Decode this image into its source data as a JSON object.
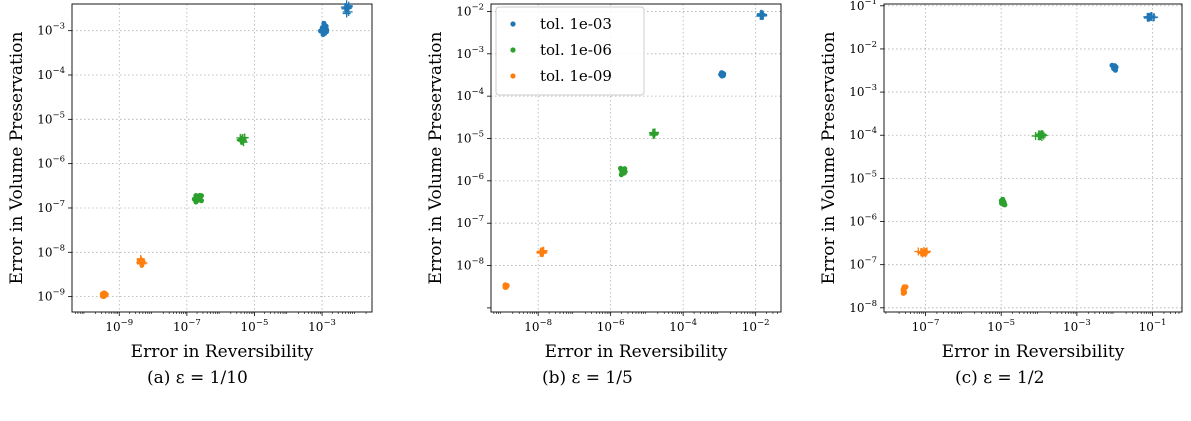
{
  "colors": {
    "blue": "#1f77b4",
    "green": "#2ca02c",
    "orange": "#ff7f0e",
    "grid": "#b0b0b0"
  },
  "legend_labels": [
    "tol. 1e-03",
    "tol. 1e-06",
    "tol. 1e-09"
  ],
  "chart_data": [
    {
      "type": "scatter",
      "caption": "(a) ε = 1/10",
      "xlabel": "Error in Reversibility",
      "ylabel": "Error in Volume Preservation",
      "xscale": "log",
      "yscale": "log",
      "xlim": [
        4e-11,
        0.03
      ],
      "ylim": [
        4.5e-10,
        0.004
      ],
      "xticks": [
        {
          "v": 1e-09,
          "e": "−9"
        },
        {
          "v": 1e-07,
          "e": "−7"
        },
        {
          "v": 1e-05,
          "e": "−5"
        },
        {
          "v": 0.001,
          "e": "−3"
        }
      ],
      "yticks": [
        {
          "v": 1e-09,
          "e": "−9"
        },
        {
          "v": 1e-08,
          "e": "−8"
        },
        {
          "v": 1e-07,
          "e": "−7"
        },
        {
          "v": 1e-06,
          "e": "−6"
        },
        {
          "v": 1e-05,
          "e": "−5"
        },
        {
          "v": 0.0001,
          "e": "−4"
        },
        {
          "v": 0.001,
          "e": "−3"
        }
      ],
      "grid": true,
      "legend": null,
      "series": [
        {
          "tol": "1e-03",
          "color": "blue",
          "marker": "dot",
          "x": 0.0012,
          "y": 0.0011,
          "spread_x": 0.12,
          "spread_y": 0.18
        },
        {
          "tol": "1e-03",
          "color": "blue",
          "marker": "plus",
          "x": 0.0055,
          "y": 0.0032,
          "spread_x": 0.08,
          "spread_y": 0.09
        },
        {
          "tol": "1e-06",
          "color": "green",
          "marker": "dot",
          "x": 2.2e-07,
          "y": 1.6e-07,
          "spread_x": 0.12,
          "spread_y": 0.1
        },
        {
          "tol": "1e-06",
          "color": "green",
          "marker": "plus",
          "x": 4.5e-06,
          "y": 3.5e-06,
          "spread_x": 0.07,
          "spread_y": 0.06
        },
        {
          "tol": "1e-09",
          "color": "orange",
          "marker": "dot",
          "x": 3.5e-10,
          "y": 1.1e-09,
          "spread_x": 0.08,
          "spread_y": 0.05
        },
        {
          "tol": "1e-09",
          "color": "orange",
          "marker": "plus",
          "x": 4.5e-09,
          "y": 6e-09,
          "spread_x": 0.06,
          "spread_y": 0.06
        }
      ]
    },
    {
      "type": "scatter",
      "caption": "(b) ε = 1/5",
      "xlabel": "Error in Reversibility",
      "ylabel": "Error in Volume Preservation",
      "xscale": "log",
      "yscale": "log",
      "xlim": [
        5e-10,
        0.05
      ],
      "ylim": [
        8e-10,
        0.015
      ],
      "xticks": [
        {
          "v": 1e-08,
          "e": "−8"
        },
        {
          "v": 1e-06,
          "e": "−6"
        },
        {
          "v": 0.0001,
          "e": "−4"
        },
        {
          "v": 0.01,
          "e": "−2"
        }
      ],
      "yticks": [
        {
          "v": 1e-08,
          "e": "−8"
        },
        {
          "v": 1e-07,
          "e": "−7"
        },
        {
          "v": 1e-06,
          "e": "−6"
        },
        {
          "v": 1e-05,
          "e": "−5"
        },
        {
          "v": 0.0001,
          "e": "−4"
        },
        {
          "v": 0.001,
          "e": "−3"
        },
        {
          "v": 0.01,
          "e": "−2"
        }
      ],
      "grid": true,
      "legend": "top-left",
      "series": [
        {
          "tol": "1e-03",
          "color": "blue",
          "marker": "dot",
          "x": 0.0012,
          "y": 0.00032,
          "spread_x": 0.05,
          "spread_y": 0.05
        },
        {
          "tol": "1e-03",
          "color": "blue",
          "marker": "plus",
          "x": 0.015,
          "y": 0.0082,
          "spread_x": 0.05,
          "spread_y": 0.03
        },
        {
          "tol": "1e-06",
          "color": "green",
          "marker": "dot",
          "x": 2.2e-06,
          "y": 1.7e-06,
          "spread_x": 0.06,
          "spread_y": 0.12
        },
        {
          "tol": "1e-06",
          "color": "green",
          "marker": "plus",
          "x": 1.5e-05,
          "y": 1.3e-05,
          "spread_x": 0.06,
          "spread_y": 0.04
        },
        {
          "tol": "1e-09",
          "color": "orange",
          "marker": "dot",
          "x": 1.3e-09,
          "y": 3.3e-09,
          "spread_x": 0.05,
          "spread_y": 0.05
        },
        {
          "tol": "1e-09",
          "color": "orange",
          "marker": "plus",
          "x": 1.3e-08,
          "y": 2.1e-08,
          "spread_x": 0.05,
          "spread_y": 0.04
        }
      ]
    },
    {
      "type": "scatter",
      "caption": "(c) ε = 1/2",
      "xlabel": "Error in Reversibility",
      "ylabel": "Error in Volume Preservation",
      "xscale": "log",
      "yscale": "log",
      "xlim": [
        8e-09,
        0.6
      ],
      "ylim": [
        8e-09,
        0.11
      ],
      "xticks": [
        {
          "v": 1e-07,
          "e": "−7"
        },
        {
          "v": 1e-05,
          "e": "−5"
        },
        {
          "v": 0.001,
          "e": "−3"
        },
        {
          "v": 0.1,
          "e": "−1"
        }
      ],
      "yticks": [
        {
          "v": 1e-08,
          "e": "−8"
        },
        {
          "v": 1e-07,
          "e": "−7"
        },
        {
          "v": 1e-06,
          "e": "−6"
        },
        {
          "v": 1e-05,
          "e": "−5"
        },
        {
          "v": 0.0001,
          "e": "−4"
        },
        {
          "v": 0.001,
          "e": "−3"
        },
        {
          "v": 0.01,
          "e": "−2"
        },
        {
          "v": 0.1,
          "e": "−1"
        }
      ],
      "grid": true,
      "legend": null,
      "series": [
        {
          "tol": "1e-03",
          "color": "blue",
          "marker": "dot",
          "x": 0.01,
          "y": 0.0038,
          "spread_x": 0.04,
          "spread_y": 0.07
        },
        {
          "tol": "1e-03",
          "color": "blue",
          "marker": "plus",
          "x": 0.085,
          "y": 0.055,
          "spread_x": 0.1,
          "spread_y": 0.02
        },
        {
          "tol": "1e-06",
          "color": "green",
          "marker": "dot",
          "x": 1.1e-05,
          "y": 2.8e-06,
          "spread_x": 0.04,
          "spread_y": 0.06
        },
        {
          "tol": "1e-06",
          "color": "green",
          "marker": "plus",
          "x": 0.0001,
          "y": 0.0001,
          "spread_x": 0.09,
          "spread_y": 0.05
        },
        {
          "tol": "1e-09",
          "color": "orange",
          "marker": "dot",
          "x": 2.7e-08,
          "y": 2.5e-08,
          "spread_x": 0.05,
          "spread_y": 0.1
        },
        {
          "tol": "1e-09",
          "color": "orange",
          "marker": "plus",
          "x": 9e-08,
          "y": 2e-07,
          "spread_x": 0.1,
          "spread_y": 0.04
        }
      ]
    }
  ]
}
